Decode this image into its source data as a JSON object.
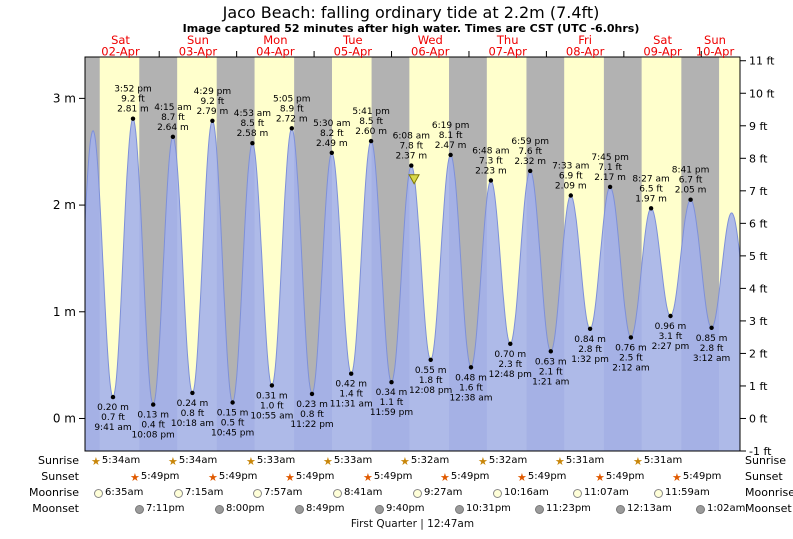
{
  "header": {
    "title": "Jaco Beach: falling ordinary tide at 2.2m (7.4ft)",
    "subtitle": "Image captured 52 minutes after high water. Times are CST (UTC -6.0hrs)"
  },
  "colors": {
    "day_band": "#ffffcc",
    "night_band": "#b2b2b2",
    "tide_fill": "#a3b1ec",
    "tide_line": "#7e90d8",
    "day_label_red": "#ee0000",
    "now_marker": "#d8d848",
    "now_marker_border": "#807800",
    "sunrise_icon": "#c8860a",
    "sunset_icon": "#e05a00",
    "moonrise_icon_fill": "#ffffd8",
    "moonrise_icon_border": "#888888",
    "moonset_icon_fill": "#9b9b9b",
    "moonset_icon_border": "#777777"
  },
  "chart_data": {
    "type": "area",
    "title": "Jaco Beach: falling ordinary tide at 2.2m (7.4ft)",
    "x_axis_days": [
      {
        "dow": "Sat",
        "date": "02-Apr"
      },
      {
        "dow": "Sun",
        "date": "03-Apr"
      },
      {
        "dow": "Mon",
        "date": "04-Apr"
      },
      {
        "dow": "Tue",
        "date": "05-Apr"
      },
      {
        "dow": "Wed",
        "date": "06-Apr"
      },
      {
        "dow": "Thu",
        "date": "07-Apr"
      },
      {
        "dow": "Fri",
        "date": "08-Apr"
      },
      {
        "dow": "Sat",
        "date": "09-Apr"
      },
      {
        "dow": "Sun",
        "date": "10-Apr"
      }
    ],
    "y_axis_left_ticks": [
      "3 m",
      "2 m",
      "1 m",
      "0 m"
    ],
    "y_axis_right_ticks": [
      "11 ft",
      "10 ft",
      "9 ft",
      "8 ft",
      "7 ft",
      "6 ft",
      "5 ft",
      "4 ft",
      "3 ft",
      "2 ft",
      "1 ft",
      "0 ft",
      "-1 ft"
    ],
    "ylim_m": [
      -0.3,
      3.4
    ],
    "tide_events": [
      {
        "day": 0,
        "time": "9:41 am",
        "type": "low",
        "m": "0.20 m",
        "ft": "0.7 ft"
      },
      {
        "day": 0,
        "time": "3:52 pm",
        "type": "high",
        "m": "2.81 m",
        "ft": "9.2 ft"
      },
      {
        "day": 0,
        "time": "10:08 pm",
        "type": "low",
        "m": "0.13 m",
        "ft": "0.4 ft"
      },
      {
        "day": 1,
        "time": "4:15 am",
        "type": "high",
        "m": "2.64 m",
        "ft": "8.7 ft"
      },
      {
        "day": 1,
        "time": "10:18 am",
        "type": "low",
        "m": "0.24 m",
        "ft": "0.8 ft"
      },
      {
        "day": 1,
        "time": "4:29 pm",
        "type": "high",
        "m": "2.79 m",
        "ft": "9.2 ft"
      },
      {
        "day": 1,
        "time": "10:45 pm",
        "type": "low",
        "m": "0.15 m",
        "ft": "0.5 ft"
      },
      {
        "day": 2,
        "time": "4:53 am",
        "type": "high",
        "m": "2.58 m",
        "ft": "8.5 ft"
      },
      {
        "day": 2,
        "time": "10:55 am",
        "type": "low",
        "m": "0.31 m",
        "ft": "1.0 ft"
      },
      {
        "day": 2,
        "time": "5:05 pm",
        "type": "high",
        "m": "2.72 m",
        "ft": "8.9 ft"
      },
      {
        "day": 2,
        "time": "11:22 pm",
        "type": "low",
        "m": "0.23 m",
        "ft": "0.8 ft"
      },
      {
        "day": 3,
        "time": "5:30 am",
        "type": "high",
        "m": "2.49 m",
        "ft": "8.2 ft"
      },
      {
        "day": 3,
        "time": "11:31 am",
        "type": "low",
        "m": "0.42 m",
        "ft": "1.4 ft"
      },
      {
        "day": 3,
        "time": "5:41 pm",
        "type": "high",
        "m": "2.60 m",
        "ft": "8.5 ft"
      },
      {
        "day": 3,
        "time": "11:59 pm",
        "type": "low",
        "m": "0.34 m",
        "ft": "1.1 ft"
      },
      {
        "day": 4,
        "time": "6:08 am",
        "type": "high",
        "m": "2.37 m",
        "ft": "7.8 ft"
      },
      {
        "day": 4,
        "time": "12:08 pm",
        "type": "low",
        "m": "0.55 m",
        "ft": "1.8 ft"
      },
      {
        "day": 4,
        "time": "6:19 pm",
        "type": "high",
        "m": "2.47 m",
        "ft": "8.1 ft"
      },
      {
        "day": 5,
        "time": "12:38 am",
        "type": "low",
        "m": "0.48 m",
        "ft": "1.6 ft"
      },
      {
        "day": 5,
        "time": "6:48 am",
        "type": "high",
        "m": "2.23 m",
        "ft": "7.3 ft"
      },
      {
        "day": 5,
        "time": "12:48 pm",
        "type": "low",
        "m": "0.70 m",
        "ft": "2.3 ft"
      },
      {
        "day": 5,
        "time": "6:59 pm",
        "type": "high",
        "m": "2.32 m",
        "ft": "7.6 ft"
      },
      {
        "day": 6,
        "time": "1:21 am",
        "type": "low",
        "m": "0.63 m",
        "ft": "2.1 ft"
      },
      {
        "day": 6,
        "time": "7:33 am",
        "type": "high",
        "m": "2.09 m",
        "ft": "6.9 ft"
      },
      {
        "day": 6,
        "time": "1:32 pm",
        "type": "low",
        "m": "0.84 m",
        "ft": "2.8 ft"
      },
      {
        "day": 6,
        "time": "7:45 pm",
        "type": "high",
        "m": "2.17 m",
        "ft": "7.1 ft"
      },
      {
        "day": 7,
        "time": "2:12 am",
        "type": "low",
        "m": "0.76 m",
        "ft": "2.5 ft"
      },
      {
        "day": 7,
        "time": "8:27 am",
        "type": "high",
        "m": "1.97 m",
        "ft": "6.5 ft"
      },
      {
        "day": 7,
        "time": "2:27 pm",
        "type": "low",
        "m": "0.96 m",
        "ft": "3.1 ft"
      },
      {
        "day": 7,
        "time": "8:41 pm",
        "type": "high",
        "m": "2.05 m",
        "ft": "6.7 ft"
      },
      {
        "day": 8,
        "time": "3:12 am",
        "type": "low",
        "m": "0.85 m",
        "ft": "2.8 ft"
      }
    ],
    "now_marker": {
      "day": 4,
      "time": "7:00 am",
      "level_m": 2.2
    }
  },
  "astro": {
    "rows": [
      {
        "label": "Sunrise",
        "icon": "sunrise-star",
        "days": [
          0,
          1,
          2,
          3,
          4,
          5,
          6,
          7
        ],
        "times": [
          "5:34am",
          "5:34am",
          "5:33am",
          "5:33am",
          "5:32am",
          "5:32am",
          "5:31am",
          "5:31am"
        ]
      },
      {
        "label": "Sunset",
        "icon": "sunset-star",
        "days": [
          0,
          1,
          2,
          3,
          4,
          5,
          6,
          7
        ],
        "times": [
          "5:49pm",
          "5:49pm",
          "5:49pm",
          "5:49pm",
          "5:49pm",
          "5:49pm",
          "5:49pm",
          "5:49pm"
        ]
      },
      {
        "label": "Moonrise",
        "icon": "moonrise-circle",
        "days": [
          0,
          1,
          2,
          3,
          4,
          5,
          6,
          7
        ],
        "times": [
          "6:35am",
          "7:15am",
          "7:57am",
          "8:41am",
          "9:27am",
          "10:16am",
          "11:07am",
          "11:59am"
        ]
      },
      {
        "label": "Moonset",
        "icon": "moonset-circle",
        "days": [
          0,
          1,
          2,
          3,
          4,
          5,
          7,
          8
        ],
        "times": [
          "7:11pm",
          "8:00pm",
          "8:49pm",
          "9:40pm",
          "10:31pm",
          "11:23pm",
          "12:13am",
          "1:02am"
        ]
      }
    ],
    "moon_phase_footer": "First Quarter | 12:47am"
  }
}
